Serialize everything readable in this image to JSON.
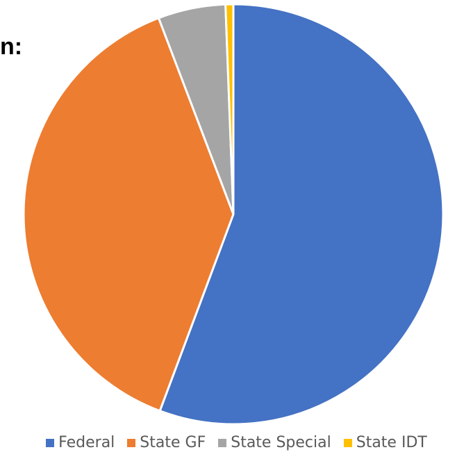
{
  "title_fragment": "n:",
  "chart_data": {
    "type": "pie",
    "title": "",
    "categories": [
      "Federal",
      "State GF",
      "State Special",
      "State IDT"
    ],
    "values": [
      55.7,
      38.5,
      5.2,
      0.6
    ],
    "colors": [
      "#4472C4",
      "#ED7D31",
      "#A5A5A5",
      "#FFC000"
    ],
    "legend_position": "bottom"
  }
}
